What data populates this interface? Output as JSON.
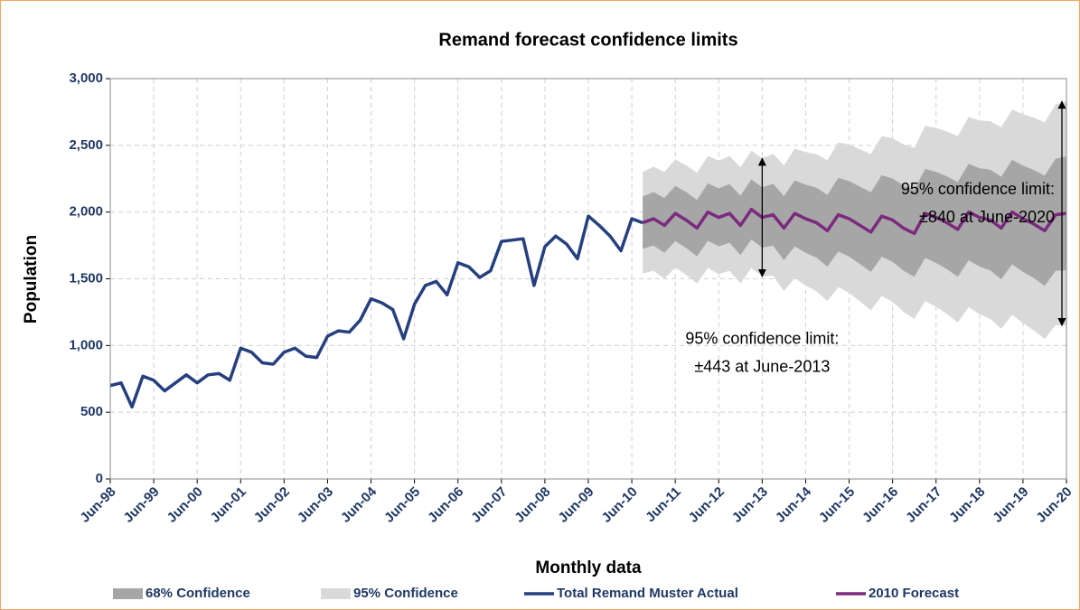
{
  "chart_data": {
    "type": "line",
    "title": "Remand forecast confidence limits",
    "x_label": "Monthly data",
    "y_label": "Population",
    "x": [
      "Jun-98",
      "Sep-98",
      "Dec-98",
      "Mar-99",
      "Jun-99",
      "Sep-99",
      "Dec-99",
      "Mar-00",
      "Jun-00",
      "Sep-00",
      "Dec-00",
      "Mar-01",
      "Jun-01",
      "Sep-01",
      "Dec-01",
      "Mar-02",
      "Jun-02",
      "Sep-02",
      "Dec-02",
      "Mar-03",
      "Jun-03",
      "Sep-03",
      "Dec-03",
      "Mar-04",
      "Jun-04",
      "Sep-04",
      "Dec-04",
      "Mar-05",
      "Jun-05",
      "Sep-05",
      "Dec-05",
      "Mar-06",
      "Jun-06",
      "Sep-06",
      "Dec-06",
      "Mar-07",
      "Jun-07",
      "Sep-07",
      "Dec-07",
      "Mar-08",
      "Jun-08",
      "Sep-08",
      "Dec-08",
      "Mar-09",
      "Jun-09",
      "Sep-09",
      "Dec-09",
      "Mar-10",
      "Jun-10",
      "Sep-10",
      "Dec-10",
      "Mar-11",
      "Jun-11",
      "Sep-11",
      "Dec-11",
      "Mar-12",
      "Jun-12",
      "Sep-12",
      "Dec-12",
      "Mar-13",
      "Jun-13",
      "Sep-13",
      "Dec-13",
      "Mar-14",
      "Jun-14",
      "Sep-14",
      "Dec-14",
      "Mar-15",
      "Jun-15",
      "Sep-15",
      "Dec-15",
      "Mar-16",
      "Jun-16",
      "Sep-16",
      "Dec-16",
      "Mar-17",
      "Jun-17",
      "Sep-17",
      "Dec-17",
      "Mar-18",
      "Jun-18",
      "Sep-18",
      "Dec-18",
      "Mar-19",
      "Jun-19",
      "Sep-19",
      "Dec-19",
      "Mar-20",
      "Jun-20"
    ],
    "xticks": [
      "Jun-98",
      "Jun-99",
      "Jun-00",
      "Jun-01",
      "Jun-02",
      "Jun-03",
      "Jun-04",
      "Jun-05",
      "Jun-06",
      "Jun-07",
      "Jun-08",
      "Jun-09",
      "Jun-10",
      "Jun-11",
      "Jun-12",
      "Jun-13",
      "Jun-14",
      "Jun-15",
      "Jun-16",
      "Jun-17",
      "Jun-18",
      "Jun-19",
      "Jun-20"
    ],
    "ylim": [
      0,
      3000
    ],
    "yticks": [
      0,
      500,
      {
        "value": 1000,
        "label": "1,000"
      },
      {
        "value": 1500,
        "label": "1,500"
      },
      {
        "value": 2000,
        "label": "2,000"
      },
      {
        "value": 2500,
        "label": "2,500"
      },
      {
        "value": 3000,
        "label": "3,000"
      }
    ],
    "grid": true,
    "series": [
      {
        "name": "68% Confidence",
        "color": "#a6a6a6",
        "errors": [
          null,
          null,
          null,
          null,
          null,
          null,
          null,
          null,
          null,
          null,
          null,
          null,
          null,
          null,
          null,
          null,
          null,
          null,
          null,
          null,
          null,
          null,
          null,
          null,
          null,
          null,
          null,
          null,
          null,
          null,
          null,
          null,
          null,
          null,
          null,
          null,
          null,
          null,
          null,
          null,
          null,
          null,
          null,
          null,
          null,
          null,
          null,
          null,
          null,
          195,
          200,
          205,
          207,
          210,
          212,
          215,
          217,
          220,
          222,
          225,
          226,
          233,
          240,
          247,
          255,
          262,
          269,
          276,
          283,
          290,
          298,
          305,
          312,
          319,
          326,
          334,
          341,
          348,
          355,
          362,
          369,
          377,
          384,
          391,
          398,
          405,
          413,
          420,
          427
        ]
      },
      {
        "name": "95% Confidence",
        "color": "#d9d9d9",
        "errors": [
          null,
          null,
          null,
          null,
          null,
          null,
          null,
          null,
          null,
          null,
          null,
          null,
          null,
          null,
          null,
          null,
          null,
          null,
          null,
          null,
          null,
          null,
          null,
          null,
          null,
          null,
          null,
          null,
          null,
          null,
          null,
          null,
          null,
          null,
          null,
          null,
          null,
          null,
          null,
          null,
          null,
          null,
          null,
          null,
          null,
          null,
          null,
          null,
          null,
          380,
          390,
          400,
          405,
          410,
          415,
          420,
          425,
          430,
          435,
          440,
          443,
          457,
          471,
          485,
          500,
          514,
          528,
          542,
          556,
          570,
          585,
          599,
          613,
          627,
          641,
          656,
          670,
          684,
          698,
          712,
          726,
          741,
          755,
          769,
          783,
          797,
          812,
          826,
          840
        ]
      },
      {
        "name": "Total Remand Muster Actual",
        "color": "#253f7f",
        "values": [
          700,
          720,
          540,
          770,
          740,
          660,
          720,
          780,
          720,
          780,
          790,
          740,
          980,
          950,
          870,
          860,
          950,
          980,
          920,
          910,
          1070,
          1110,
          1100,
          1190,
          1350,
          1320,
          1270,
          1050,
          1310,
          1450,
          1480,
          1380,
          1620,
          1590,
          1510,
          1560,
          1780,
          1790,
          1800,
          1450,
          1740,
          1820,
          1760,
          1650,
          1970,
          1900,
          1820,
          1710,
          1950,
          1920,
          null,
          null,
          null,
          null,
          null,
          null,
          null,
          null,
          null,
          null,
          null,
          null,
          null,
          null,
          null,
          null,
          null,
          null,
          null,
          null,
          null,
          null,
          null,
          null,
          null,
          null,
          null,
          null,
          null,
          null,
          null,
          null,
          null,
          null,
          null,
          null,
          null,
          null,
          null
        ]
      },
      {
        "name": "2010 Forecast",
        "color": "#7b2a7e",
        "values": [
          null,
          null,
          null,
          null,
          null,
          null,
          null,
          null,
          null,
          null,
          null,
          null,
          null,
          null,
          null,
          null,
          null,
          null,
          null,
          null,
          null,
          null,
          null,
          null,
          null,
          null,
          null,
          null,
          null,
          null,
          null,
          null,
          null,
          null,
          null,
          null,
          null,
          null,
          null,
          null,
          null,
          null,
          null,
          null,
          null,
          null,
          null,
          null,
          null,
          1920,
          1950,
          1900,
          1990,
          1940,
          1880,
          2000,
          1960,
          1990,
          1900,
          2020,
          1960,
          1980,
          1880,
          1990,
          1950,
          1920,
          1860,
          1980,
          1950,
          1900,
          1850,
          1970,
          1940,
          1880,
          1840,
          1990,
          1960,
          1920,
          1870,
          2000,
          1960,
          1940,
          1880,
          2000,
          1950,
          1910,
          1860,
          1980,
          1990
        ]
      }
    ],
    "annotations": [
      {
        "x": "Jun-13",
        "lines": [
          "95% confidence limit:",
          "±443 at June-2013"
        ]
      },
      {
        "x": "Jun-20",
        "lines": [
          "95% confidence limit:",
          "±840 at June-2020"
        ]
      }
    ]
  }
}
